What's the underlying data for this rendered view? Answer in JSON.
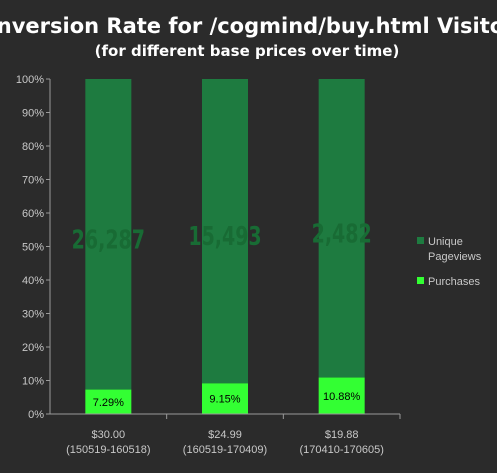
{
  "title": "Conversion Rate for /cogmind/buy.html Visitors",
  "subtitle": "(for different base prices over time)",
  "chart_data": {
    "type": "bar",
    "stacked": true,
    "percent_stacked": true,
    "title": "Conversion Rate for /cogmind/buy.html Visitors",
    "subtitle": "(for different base prices over time)",
    "categories": [
      {
        "price": "$30.00",
        "range": "(150519-160518)"
      },
      {
        "price": "$24.99",
        "range": "(160519-170409)"
      },
      {
        "price": "$19.88",
        "range": "(170410-170605)"
      }
    ],
    "series": [
      {
        "name": "Purchases",
        "color": "#33ff33",
        "values": [
          7.29,
          9.15,
          10.88
        ],
        "labels": [
          "7.29%",
          "9.15%",
          "10.88%"
        ]
      },
      {
        "name": "Unique Pageviews",
        "color": "#1e7b40",
        "values": [
          92.71,
          90.85,
          89.12
        ],
        "labels": [
          "26,287",
          "15,493",
          "2,482"
        ]
      }
    ],
    "ylim": [
      0,
      100
    ],
    "y_ticks": [
      "0%",
      "10%",
      "20%",
      "30%",
      "40%",
      "50%",
      "60%",
      "70%",
      "80%",
      "90%",
      "100%"
    ],
    "grid": false,
    "legend": {
      "position": "right",
      "entries": [
        {
          "label_lines": [
            "Unique",
            "Pageviews"
          ],
          "color": "#1e7b40"
        },
        {
          "label_lines": [
            "Purchases"
          ],
          "color": "#33ff33"
        }
      ]
    },
    "colors": {
      "background": "#2b2b2b",
      "axis": "#9a9a9a",
      "text": "#c8c8c8"
    }
  }
}
